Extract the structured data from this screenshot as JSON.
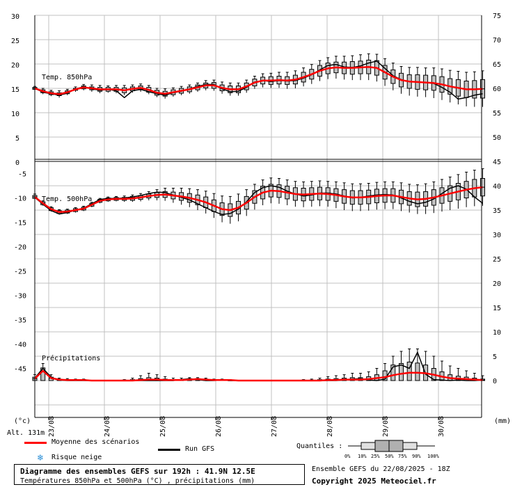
{
  "colors": {
    "mean": "#ff0000",
    "gfs": "#000000",
    "box_fill": "#c0c0c0",
    "grid": "#c0c0c0",
    "snow": "#2b8fd6"
  },
  "units_left": "(°c)",
  "units_right": "(mm)",
  "altitude": "Alt. 131m",
  "legend": {
    "mean": "Moyenne des scénarios",
    "gfs": "Run GFS",
    "snow": "Risque neige",
    "quantiles_label": "Quantiles :",
    "quantiles": [
      "0%",
      "10%",
      "25%",
      "50%",
      "75%",
      "90%",
      "100%"
    ]
  },
  "title": "Diagramme des ensembles GEFS sur 192h : 41.9N 12.5E",
  "subtitle": "Températures 850hPa et 500hPa (°C) , précipitations (mm)",
  "run_info": "Ensemble GEFS du 22/08/2025 - 18Z",
  "copyright": "Copyright 2025 Meteociel.fr",
  "chart_data": [
    {
      "type": "box",
      "title": "Temp. 850hPa",
      "y_left_ticks": [
        "30",
        "25",
        "20",
        "15",
        "10",
        "5",
        "0"
      ],
      "y_right_ticks": [
        "75",
        "70",
        "65",
        "60",
        "55",
        "50"
      ],
      "x_tick_labels": [
        "23/08",
        "24/08",
        "25/08",
        "26/08",
        "27/08",
        "28/08",
        "29/08",
        "30/08"
      ],
      "ylim": [
        0,
        30
      ],
      "step_hours": 6,
      "mean": [
        15,
        14.4,
        14,
        13.8,
        14.2,
        14.8,
        15.2,
        15,
        14.8,
        14.8,
        14.8,
        14.6,
        14.9,
        15.1,
        14.7,
        14.1,
        13.9,
        14.2,
        14.5,
        14.8,
        15.2,
        15.6,
        15.6,
        15.1,
        14.8,
        14.8,
        15.4,
        16.2,
        16.6,
        16.6,
        16.7,
        16.6,
        16.8,
        17.3,
        17.9,
        18.6,
        19.1,
        19.3,
        19.2,
        19.2,
        19.3,
        19.4,
        19.2,
        18.3,
        17.4,
        16.7,
        16.4,
        16.3,
        16.2,
        16.1,
        15.8,
        15.4,
        15.1,
        14.8,
        14.8,
        14.9
      ],
      "gfs": [
        15,
        14.2,
        13.9,
        13.6,
        14,
        14.9,
        15.3,
        14.9,
        14.6,
        14.8,
        14.5,
        13.1,
        14.5,
        14.8,
        14.3,
        13.9,
        13.6,
        14.1,
        14.4,
        14.9,
        15.4,
        15.8,
        15.8,
        14.9,
        14.3,
        14.4,
        15.2,
        16.3,
        16.6,
        16.4,
        16.6,
        16.5,
        16.6,
        17.1,
        17.8,
        18.8,
        19.7,
        19.9,
        19.4,
        19.3,
        19.6,
        20.2,
        20.6,
        19.1,
        17.6,
        16.8,
        16.4,
        16.3,
        16.2,
        16,
        15.2,
        14.2,
        12.8,
        13.1,
        13.6,
        13.9
      ],
      "q10": [
        14.6,
        13.8,
        13.4,
        13.1,
        13.6,
        14.3,
        14.6,
        14.3,
        14,
        14.1,
        14,
        13.6,
        14.1,
        14.3,
        13.8,
        13.2,
        12.9,
        13.3,
        13.6,
        13.9,
        14.3,
        14.6,
        14.5,
        13.9,
        13.5,
        13.5,
        14.1,
        14.9,
        15.2,
        15.1,
        15.1,
        14.9,
        15,
        15.4,
        15.9,
        16.5,
        16.9,
        17,
        16.8,
        16.7,
        16.7,
        16.7,
        16.4,
        15.5,
        14.6,
        13.9,
        13.5,
        13.3,
        13.2,
        13,
        12.6,
        12.1,
        11.7,
        11.3,
        11.2,
        11.2
      ],
      "q25": [
        14.8,
        14.1,
        13.7,
        13.5,
        13.9,
        14.6,
        14.9,
        14.7,
        14.4,
        14.4,
        14.4,
        14.1,
        14.5,
        14.7,
        14.2,
        13.6,
        13.4,
        13.7,
        14,
        14.3,
        14.7,
        15.1,
        15,
        14.5,
        14.1,
        14.1,
        14.7,
        15.5,
        15.9,
        15.8,
        15.9,
        15.8,
        15.9,
        16.3,
        16.9,
        17.5,
        18,
        18.2,
        18,
        17.9,
        18,
        18,
        17.7,
        16.9,
        16,
        15.3,
        15,
        14.8,
        14.7,
        14.6,
        14.2,
        13.8,
        13.4,
        13.1,
        13,
        13
      ]
    },
    {
      "type": "box",
      "title": "Temp. 500hPa",
      "y_left_ticks": [
        "-5",
        "-10",
        "-15",
        "-20",
        "-25",
        "-30",
        "-35",
        "-40",
        "-45"
      ],
      "y_right_ticks": [
        "45",
        "40",
        "35",
        "30",
        "25",
        "20",
        "15",
        "10",
        "5",
        "0"
      ],
      "ylim": [
        -45,
        -2.5
      ],
      "mean": [
        -9.8,
        -11.1,
        -12.3,
        -12.9,
        -12.8,
        -12.5,
        -12.2,
        -11.4,
        -10.6,
        -10.3,
        -10.2,
        -10.2,
        -10.1,
        -9.9,
        -9.6,
        -9.4,
        -9.3,
        -9.5,
        -9.7,
        -10,
        -10.4,
        -10.9,
        -11.6,
        -12.3,
        -12.5,
        -12,
        -11,
        -9.8,
        -8.9,
        -8.5,
        -8.6,
        -8.9,
        -9.2,
        -9.3,
        -9.2,
        -9.1,
        -9.2,
        -9.4,
        -9.7,
        -9.9,
        -9.9,
        -9.8,
        -9.6,
        -9.5,
        -9.5,
        -9.8,
        -10.1,
        -10.3,
        -10.2,
        -9.9,
        -9.5,
        -9.1,
        -8.7,
        -8.3,
        -8,
        -7.8
      ],
      "gfs": [
        -9.9,
        -11.3,
        -12.6,
        -13.3,
        -13,
        -12.5,
        -12.1,
        -11.2,
        -10.3,
        -10.1,
        -10.1,
        -10,
        -9.8,
        -9.5,
        -9.1,
        -8.8,
        -8.9,
        -9.4,
        -9.9,
        -10.4,
        -11.2,
        -12,
        -12.8,
        -13.4,
        -13.2,
        -12.3,
        -10.8,
        -8.9,
        -7.9,
        -7.5,
        -7.8,
        -8.6,
        -9.2,
        -9.6,
        -9.4,
        -9,
        -9,
        -9.2,
        -9.6,
        -10,
        -9.9,
        -9.6,
        -9.4,
        -9.3,
        -9.4,
        -10,
        -10.7,
        -11.2,
        -10.9,
        -10.2,
        -9.1,
        -8,
        -7.5,
        -8.2,
        -9.8,
        -11.1
      ],
      "q10": [
        -10.4,
        -11.6,
        -12.8,
        -13.4,
        -13.3,
        -13,
        -12.7,
        -11.9,
        -11.1,
        -10.8,
        -10.7,
        -10.8,
        -10.8,
        -10.7,
        -10.5,
        -10.5,
        -10.6,
        -11,
        -11.4,
        -11.9,
        -12.5,
        -13.2,
        -14.1,
        -15,
        -15.3,
        -14.8,
        -13.7,
        -12.4,
        -11.5,
        -11.1,
        -11.2,
        -11.5,
        -11.8,
        -11.9,
        -11.8,
        -11.7,
        -11.8,
        -12.1,
        -12.5,
        -12.7,
        -12.7,
        -12.6,
        -12.4,
        -12.3,
        -12.3,
        -12.7,
        -13,
        -13.3,
        -13.3,
        -13.1,
        -12.8,
        -12.5,
        -12.2,
        -11.9,
        -11.7,
        -11.6
      ],
      "q25": [
        -10.1,
        -11.4,
        -12.6,
        -13.2,
        -13.1,
        -12.8,
        -12.5,
        -11.7,
        -10.9,
        -10.6,
        -10.5,
        -10.5,
        -10.5,
        -10.3,
        -10,
        -9.9,
        -9.9,
        -10.2,
        -10.5,
        -10.9,
        -11.4,
        -12,
        -12.8,
        -13.6,
        -13.8,
        -13.3,
        -12.3,
        -11.1,
        -10.2,
        -9.8,
        -9.9,
        -10.2,
        -10.5,
        -10.6,
        -10.5,
        -10.4,
        -10.5,
        -10.7,
        -11.1,
        -11.3,
        -11.3,
        -11.2,
        -11,
        -10.9,
        -10.9,
        -11.2,
        -11.5,
        -11.8,
        -11.7,
        -11.5,
        -11.1,
        -10.7,
        -10.4,
        -10,
        -9.8,
        -9.6
      ]
    },
    {
      "type": "box",
      "title": "Précipitations",
      "ylim": [
        0,
        45
      ],
      "mean": [
        0.4,
        2,
        0.5,
        0.2,
        0.1,
        0.1,
        0.1,
        0,
        0,
        0,
        0,
        0,
        0,
        0.1,
        0.2,
        0.2,
        0.1,
        0.1,
        0.1,
        0.2,
        0.3,
        0.2,
        0.1,
        0.1,
        0.1,
        0,
        0,
        0,
        0,
        0,
        0,
        0,
        0,
        0,
        0,
        0,
        0.1,
        0.1,
        0.2,
        0.2,
        0.2,
        0.3,
        0.5,
        0.7,
        1.1,
        1.4,
        1.6,
        1.6,
        1.5,
        1.2,
        0.8,
        0.5,
        0.4,
        0.3,
        0.2,
        0.1
      ],
      "gfs": [
        0.5,
        2.5,
        0.7,
        0.1,
        0,
        0,
        0,
        0,
        0,
        0,
        0,
        0,
        0,
        0,
        0,
        0,
        0,
        0,
        0.2,
        0.4,
        0.2,
        0,
        0,
        0.1,
        0,
        0,
        0,
        0,
        0,
        0,
        0,
        0,
        0,
        0,
        0,
        0,
        0,
        0,
        0.1,
        0.3,
        0.4,
        0.1,
        0,
        0.3,
        2.8,
        3.2,
        2.5,
        5.8,
        1.3,
        0.2,
        0.1,
        0,
        0.1,
        0,
        0,
        0.1
      ],
      "q90": [
        1.2,
        3.5,
        1.2,
        0.5,
        0.4,
        0.3,
        0.3,
        0.1,
        0.1,
        0.1,
        0.1,
        0.2,
        0.5,
        1,
        1.5,
        1.2,
        0.8,
        0.5,
        0.5,
        0.6,
        0.6,
        0.5,
        0.3,
        0.3,
        0.2,
        0.1,
        0.1,
        0,
        0,
        0,
        0,
        0,
        0.1,
        0.2,
        0.3,
        0.5,
        0.8,
        1,
        1.2,
        1.5,
        1.5,
        1.8,
        2.5,
        3.5,
        5,
        6,
        6.5,
        6.5,
        6,
        5,
        4,
        3,
        2.5,
        2,
        1.5,
        1
      ],
      "q75": [
        0.7,
        2.6,
        0.7,
        0.3,
        0.2,
        0.2,
        0.2,
        0,
        0,
        0,
        0,
        0.1,
        0.2,
        0.4,
        0.6,
        0.5,
        0.3,
        0.2,
        0.2,
        0.3,
        0.4,
        0.3,
        0.2,
        0.2,
        0.1,
        0,
        0,
        0,
        0,
        0,
        0,
        0,
        0,
        0.1,
        0.1,
        0.2,
        0.3,
        0.4,
        0.5,
        0.6,
        0.6,
        0.8,
        1.2,
        2,
        3.2,
        3.5,
        3.8,
        3.6,
        3.2,
        2.5,
        1.8,
        1.2,
        0.9,
        0.7,
        0.5,
        0.3
      ]
    }
  ]
}
